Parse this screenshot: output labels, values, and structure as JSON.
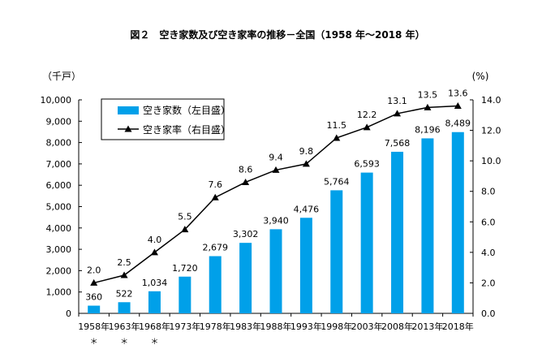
{
  "chart_data": {
    "type": "bar",
    "title": "図２　空き家数及び空き家率の推移－全国（1958 年～2018 年）",
    "left_unit": "（千戸）",
    "right_unit": "(%)",
    "categories": [
      "1958年",
      "1963年",
      "1968年",
      "1973年",
      "1978年",
      "1983年",
      "1988年",
      "1993年",
      "1998年",
      "2003年",
      "2008年",
      "2013年",
      "2018年"
    ],
    "footnote_marks": [
      "＊",
      "＊",
      "＊",
      "",
      "",
      "",
      "",
      "",
      "",
      "",
      "",
      "",
      ""
    ],
    "left_axis": {
      "min": 0,
      "max": 10000,
      "ticks": [
        "0",
        "1,000",
        "2,000",
        "3,000",
        "4,000",
        "5,000",
        "6,000",
        "7,000",
        "8,000",
        "9,000",
        "10,000"
      ]
    },
    "right_axis": {
      "min": 0,
      "max": 14,
      "ticks": [
        "0.0",
        "2.0",
        "4.0",
        "6.0",
        "8.0",
        "10.0",
        "12.0",
        "14.0"
      ]
    },
    "series": [
      {
        "name": "空き家数（左目盛）",
        "type": "bar",
        "color": "#00a0e9",
        "values": [
          360,
          522,
          1034,
          1720,
          2679,
          3302,
          3940,
          4476,
          5764,
          6593,
          7568,
          8196,
          8489
        ],
        "labels": [
          "360",
          "522",
          "1,034",
          "1,720",
          "2,679",
          "3,302",
          "3,940",
          "4,476",
          "5,764",
          "6,593",
          "7,568",
          "8,196",
          "8,489"
        ]
      },
      {
        "name": "空き家率（右目盛）",
        "type": "line",
        "color": "#000000",
        "values": [
          2.0,
          2.5,
          4.0,
          5.5,
          7.6,
          8.6,
          9.4,
          9.8,
          11.5,
          12.2,
          13.1,
          13.5,
          13.6
        ],
        "labels": [
          "2.0",
          "2.5",
          "4.0",
          "5.5",
          "7.6",
          "8.6",
          "9.4",
          "9.8",
          "11.5",
          "12.2",
          "13.1",
          "13.5",
          "13.6"
        ]
      }
    ],
    "legend_position": "top-left",
    "grid": false
  }
}
